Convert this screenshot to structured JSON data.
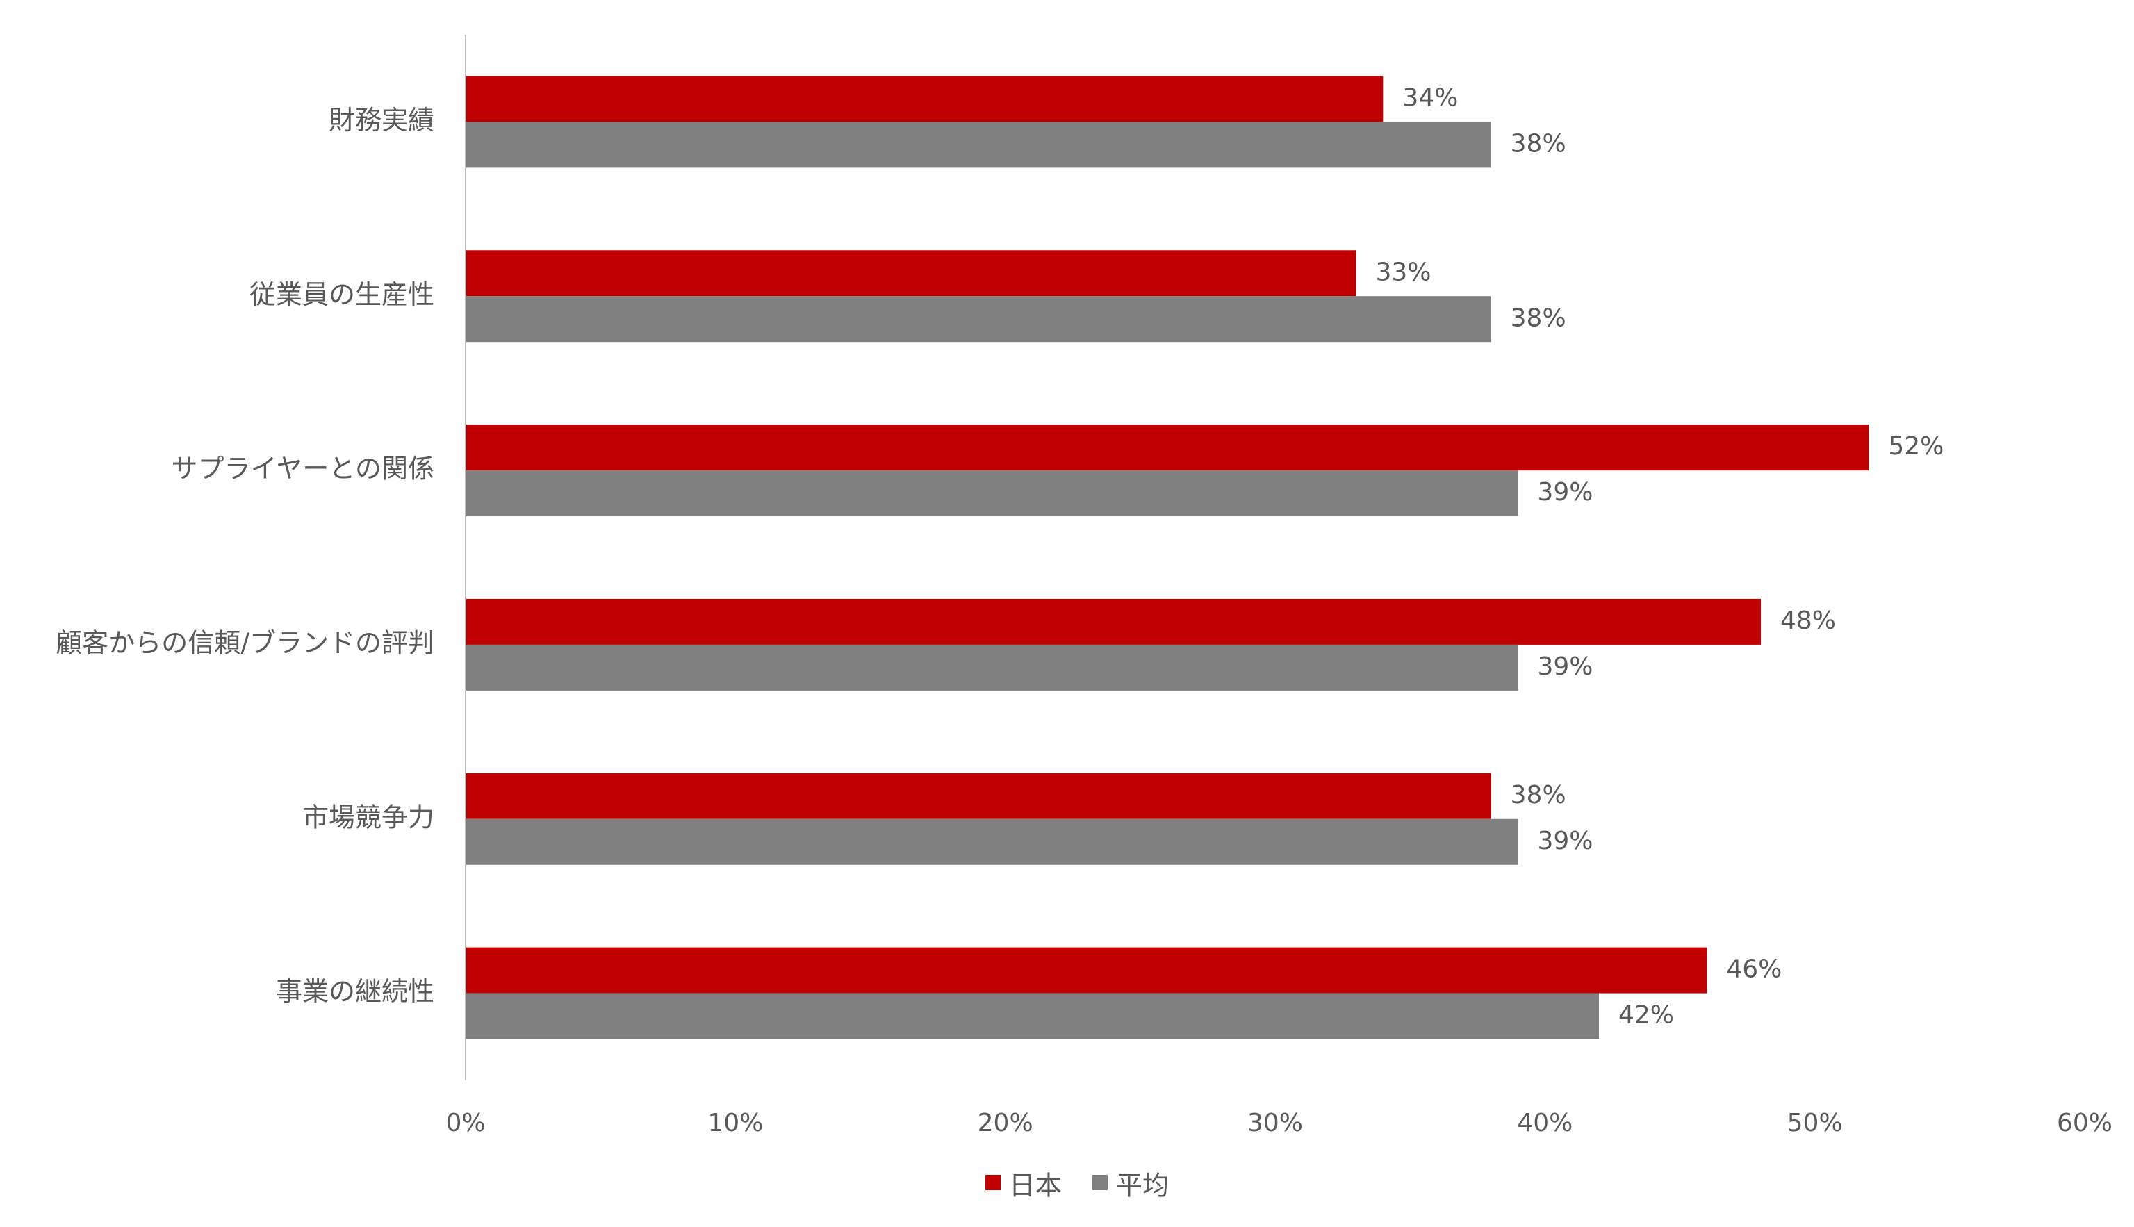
{
  "chart_data": {
    "type": "bar",
    "orientation": "horizontal",
    "categories": [
      "財務実績",
      "従業員の生産性",
      "サプライヤーとの関係",
      "顧客からの信頼/ブランドの評判",
      "市場競争力",
      "事業の継続性"
    ],
    "series": [
      {
        "name": "日本",
        "values": [
          34,
          33,
          52,
          48,
          38,
          46
        ],
        "labels": [
          "34%",
          "33%",
          "52%",
          "48%",
          "38%",
          "46%"
        ],
        "color": "#C00000"
      },
      {
        "name": "平均",
        "values": [
          38,
          38,
          39,
          39,
          39,
          42
        ],
        "labels": [
          "38%",
          "38%",
          "39%",
          "39%",
          "39%",
          "42%"
        ],
        "color": "#808080"
      }
    ],
    "xlim": [
      0,
      60
    ],
    "x_ticks": [
      0,
      10,
      20,
      30,
      40,
      50,
      60
    ],
    "x_tick_labels": [
      "0%",
      "10%",
      "20%",
      "30%",
      "40%",
      "50%",
      "60%"
    ],
    "grid": false,
    "legend": "bottom-center",
    "axis_color": "#BFBFBF",
    "text_color": "#595959"
  }
}
